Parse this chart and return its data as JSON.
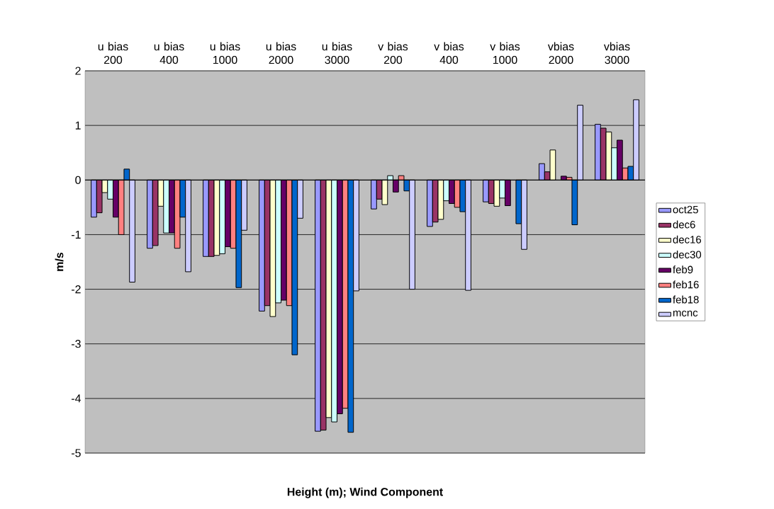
{
  "chart_data": {
    "type": "bar",
    "xlabel": "Height (m); Wind Component",
    "ylabel": "m/s",
    "categories": [
      "u bias 200",
      "u bias 400",
      "u bias 1000",
      "u bias 2000",
      "u bias 3000",
      "v bias 200",
      "v bias 400",
      "v bias 1000",
      "vbias 2000",
      "vbias 3000"
    ],
    "series": [
      {
        "name": "oct25",
        "color": "#9999ff",
        "values": [
          -0.68,
          -1.25,
          -1.4,
          -2.4,
          -4.6,
          -0.53,
          -0.85,
          -0.4,
          0.3,
          1.02
        ]
      },
      {
        "name": "dec6",
        "color": "#993366",
        "values": [
          -0.6,
          -1.2,
          -1.4,
          -2.3,
          -4.58,
          -0.35,
          -0.77,
          -0.43,
          0.15,
          0.95
        ]
      },
      {
        "name": "dec16",
        "color": "#ffffcc",
        "values": [
          -0.23,
          -0.48,
          -1.38,
          -2.5,
          -4.35,
          -0.45,
          -0.72,
          -0.48,
          0.55,
          0.88
        ]
      },
      {
        "name": "dec30",
        "color": "#ccffff",
        "values": [
          -0.35,
          -0.97,
          -1.35,
          -2.25,
          -4.43,
          0.08,
          -0.38,
          -0.33,
          null,
          0.59
        ]
      },
      {
        "name": "feb9",
        "color": "#660066",
        "values": [
          -0.68,
          -0.97,
          -1.22,
          -2.2,
          -4.28,
          -0.22,
          -0.43,
          -0.47,
          0.07,
          0.73
        ]
      },
      {
        "name": "feb16",
        "color": "#ff8080",
        "values": [
          -1.0,
          -1.25,
          -1.25,
          -2.3,
          -4.18,
          0.08,
          -0.5,
          null,
          0.05,
          0.22
        ]
      },
      {
        "name": "feb18",
        "color": "#0066cc",
        "values": [
          0.2,
          -0.68,
          -1.97,
          -3.2,
          -4.62,
          -0.2,
          -0.58,
          -0.8,
          -0.82,
          0.25
        ]
      },
      {
        "name": "mcnc",
        "color": "#ccccff",
        "values": [
          -1.87,
          -1.68,
          -0.92,
          -0.7,
          -2.03,
          -2.0,
          -2.02,
          -1.27,
          1.37,
          1.47
        ]
      }
    ],
    "ylim": [
      -5,
      2
    ],
    "yticks": [
      -5,
      -4,
      -3,
      -2,
      -1,
      0,
      1,
      2
    ],
    "grid": "y",
    "legend": "right"
  }
}
